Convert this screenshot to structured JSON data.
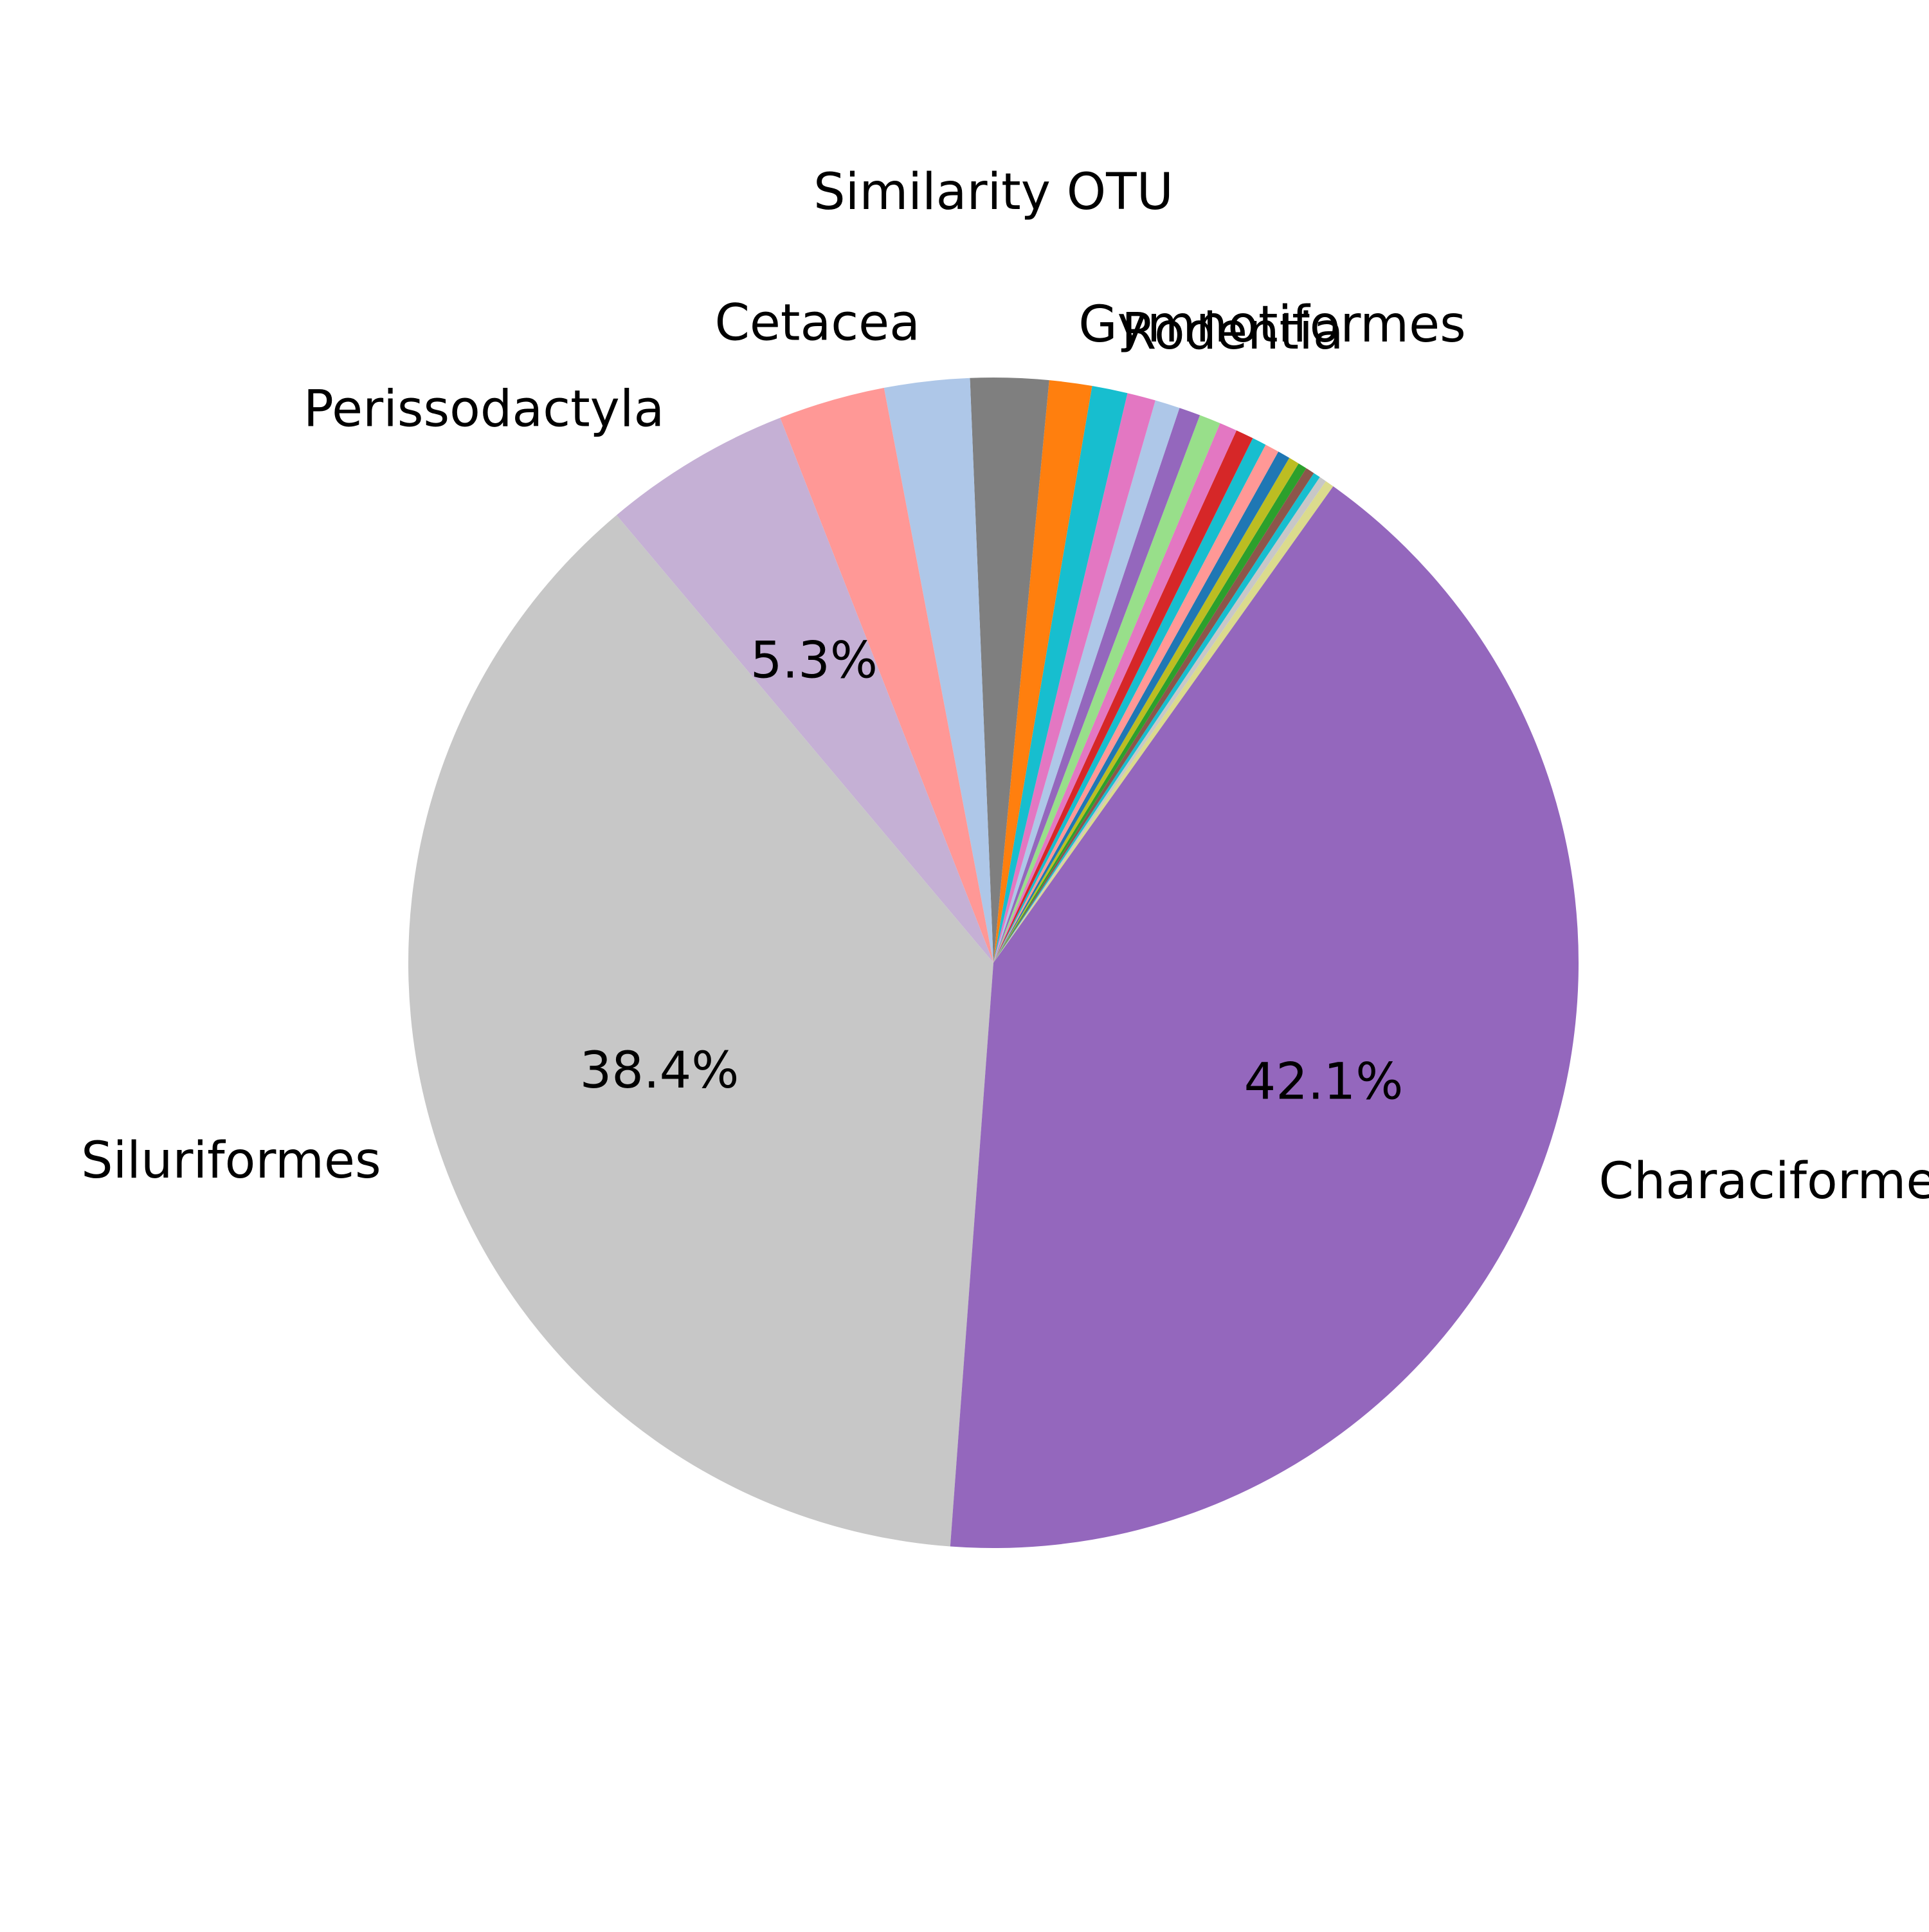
{
  "chart_data": {
    "type": "pie",
    "title": "Similarity OTU",
    "start_angle_deg": 54.5,
    "direction": "counterclockwise",
    "slices": [
      {
        "label": "",
        "value": 0.25,
        "color": "#dbdb8d",
        "pct_label": ""
      },
      {
        "label": "",
        "value": 0.2,
        "color": "#c7c7c7",
        "pct_label": ""
      },
      {
        "label": "",
        "value": 0.2,
        "color": "#17becf",
        "pct_label": ""
      },
      {
        "label": "",
        "value": 0.25,
        "color": "#8c564b",
        "pct_label": ""
      },
      {
        "label": "",
        "value": 0.25,
        "color": "#2ca02c",
        "pct_label": ""
      },
      {
        "label": "",
        "value": 0.3,
        "color": "#bcbd22",
        "pct_label": ""
      },
      {
        "label": "",
        "value": 0.35,
        "color": "#1f77b4",
        "pct_label": ""
      },
      {
        "label": "",
        "value": 0.4,
        "color": "#ff9896",
        "pct_label": ""
      },
      {
        "label": "",
        "value": 0.4,
        "color": "#17becf",
        "pct_label": ""
      },
      {
        "label": "",
        "value": 0.5,
        "color": "#d62728",
        "pct_label": ""
      },
      {
        "label": "",
        "value": 0.5,
        "color": "#e377c2",
        "pct_label": ""
      },
      {
        "label": "",
        "value": 0.6,
        "color": "#98df8a",
        "pct_label": ""
      },
      {
        "label": "",
        "value": 0.6,
        "color": "#9467bd",
        "pct_label": ""
      },
      {
        "label": "",
        "value": 0.7,
        "color": "#aec7e8",
        "pct_label": ""
      },
      {
        "label": "",
        "value": 0.8,
        "color": "#e377c2",
        "pct_label": ""
      },
      {
        "label": "Rodentia",
        "value": 1.0,
        "color": "#17becf",
        "pct_label": ""
      },
      {
        "label": "Gymnotiformes",
        "value": 1.2,
        "color": "#ff7f0e",
        "pct_label": ""
      },
      {
        "label": "",
        "value": 2.2,
        "color": "#7f7f7f",
        "pct_label": ""
      },
      {
        "label": "Cetacea",
        "value": 2.4,
        "color": "#aec7e8",
        "pct_label": ""
      },
      {
        "label": "",
        "value": 3.0,
        "color": "#ff9896",
        "pct_label": ""
      },
      {
        "label": "Perissodactyla",
        "value": 5.3,
        "color": "#c5b0d5",
        "pct_label": "5.3%"
      },
      {
        "label": "Siluriformes",
        "value": 38.4,
        "color": "#c7c7c7",
        "pct_label": "38.4%"
      },
      {
        "label": "Characiformes",
        "value": 42.1,
        "color": "#9467bd",
        "pct_label": "42.1%"
      }
    ]
  }
}
